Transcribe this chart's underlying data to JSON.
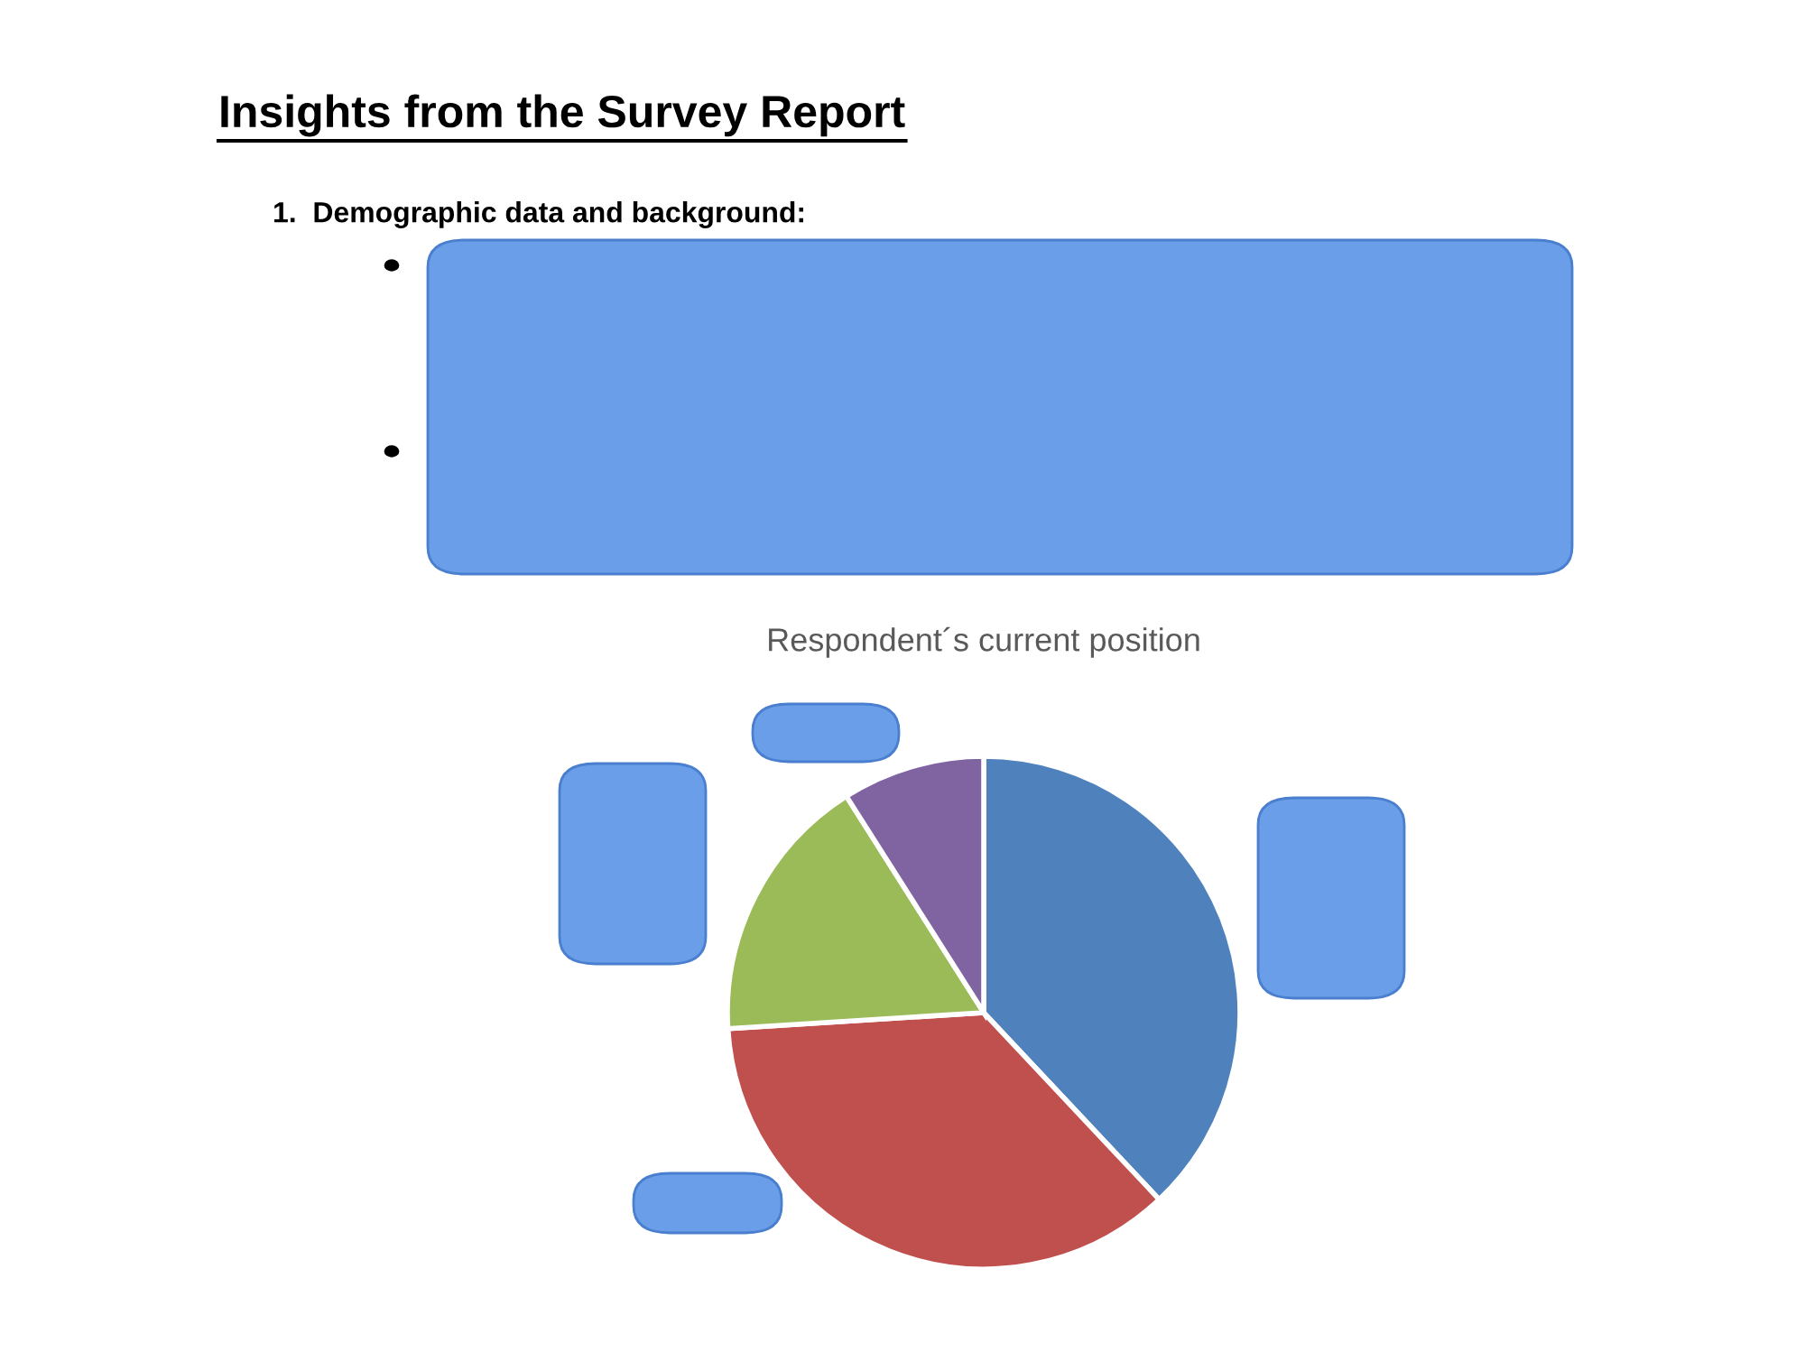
{
  "chart_data": {
    "type": "pie",
    "title": "Respondent´s current position",
    "categories": [
      null,
      null,
      null,
      null
    ],
    "values": [
      38,
      36,
      17,
      9
    ],
    "colors": [
      "#4f81bd",
      "#c0504d",
      "#9bbb59",
      "#8064a2"
    ],
    "annotations": [
      "Insights from the Survey Report",
      "1.  Demographic data and background:"
    ]
  }
}
